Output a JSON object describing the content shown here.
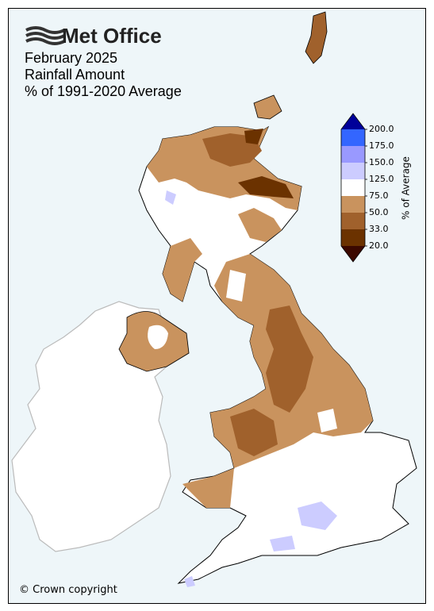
{
  "logo": "Met Office",
  "title": [
    "February 2025",
    "Rainfall Amount",
    "% of 1991-2020 Average"
  ],
  "colorbar": {
    "label": "% of Average",
    "ticks": [
      {
        "value": 20,
        "label": "20.0"
      },
      {
        "value": 33,
        "label": "33.0"
      },
      {
        "value": 50,
        "label": "50.0"
      },
      {
        "value": 75,
        "label": "75.0"
      },
      {
        "value": 125,
        "label": "125.0"
      },
      {
        "value": 150,
        "label": "150.0"
      },
      {
        "value": 175,
        "label": "175.0"
      },
      {
        "value": 200,
        "label": "200.0"
      }
    ],
    "colors": [
      "#6b3200",
      "#a0612c",
      "#c9935e",
      "#ffffff",
      "#ccccff",
      "#9999ff",
      "#3366ff"
    ],
    "under_color": "#3b0800",
    "over_color": "#000099"
  },
  "copyright": "© Crown copyright"
}
